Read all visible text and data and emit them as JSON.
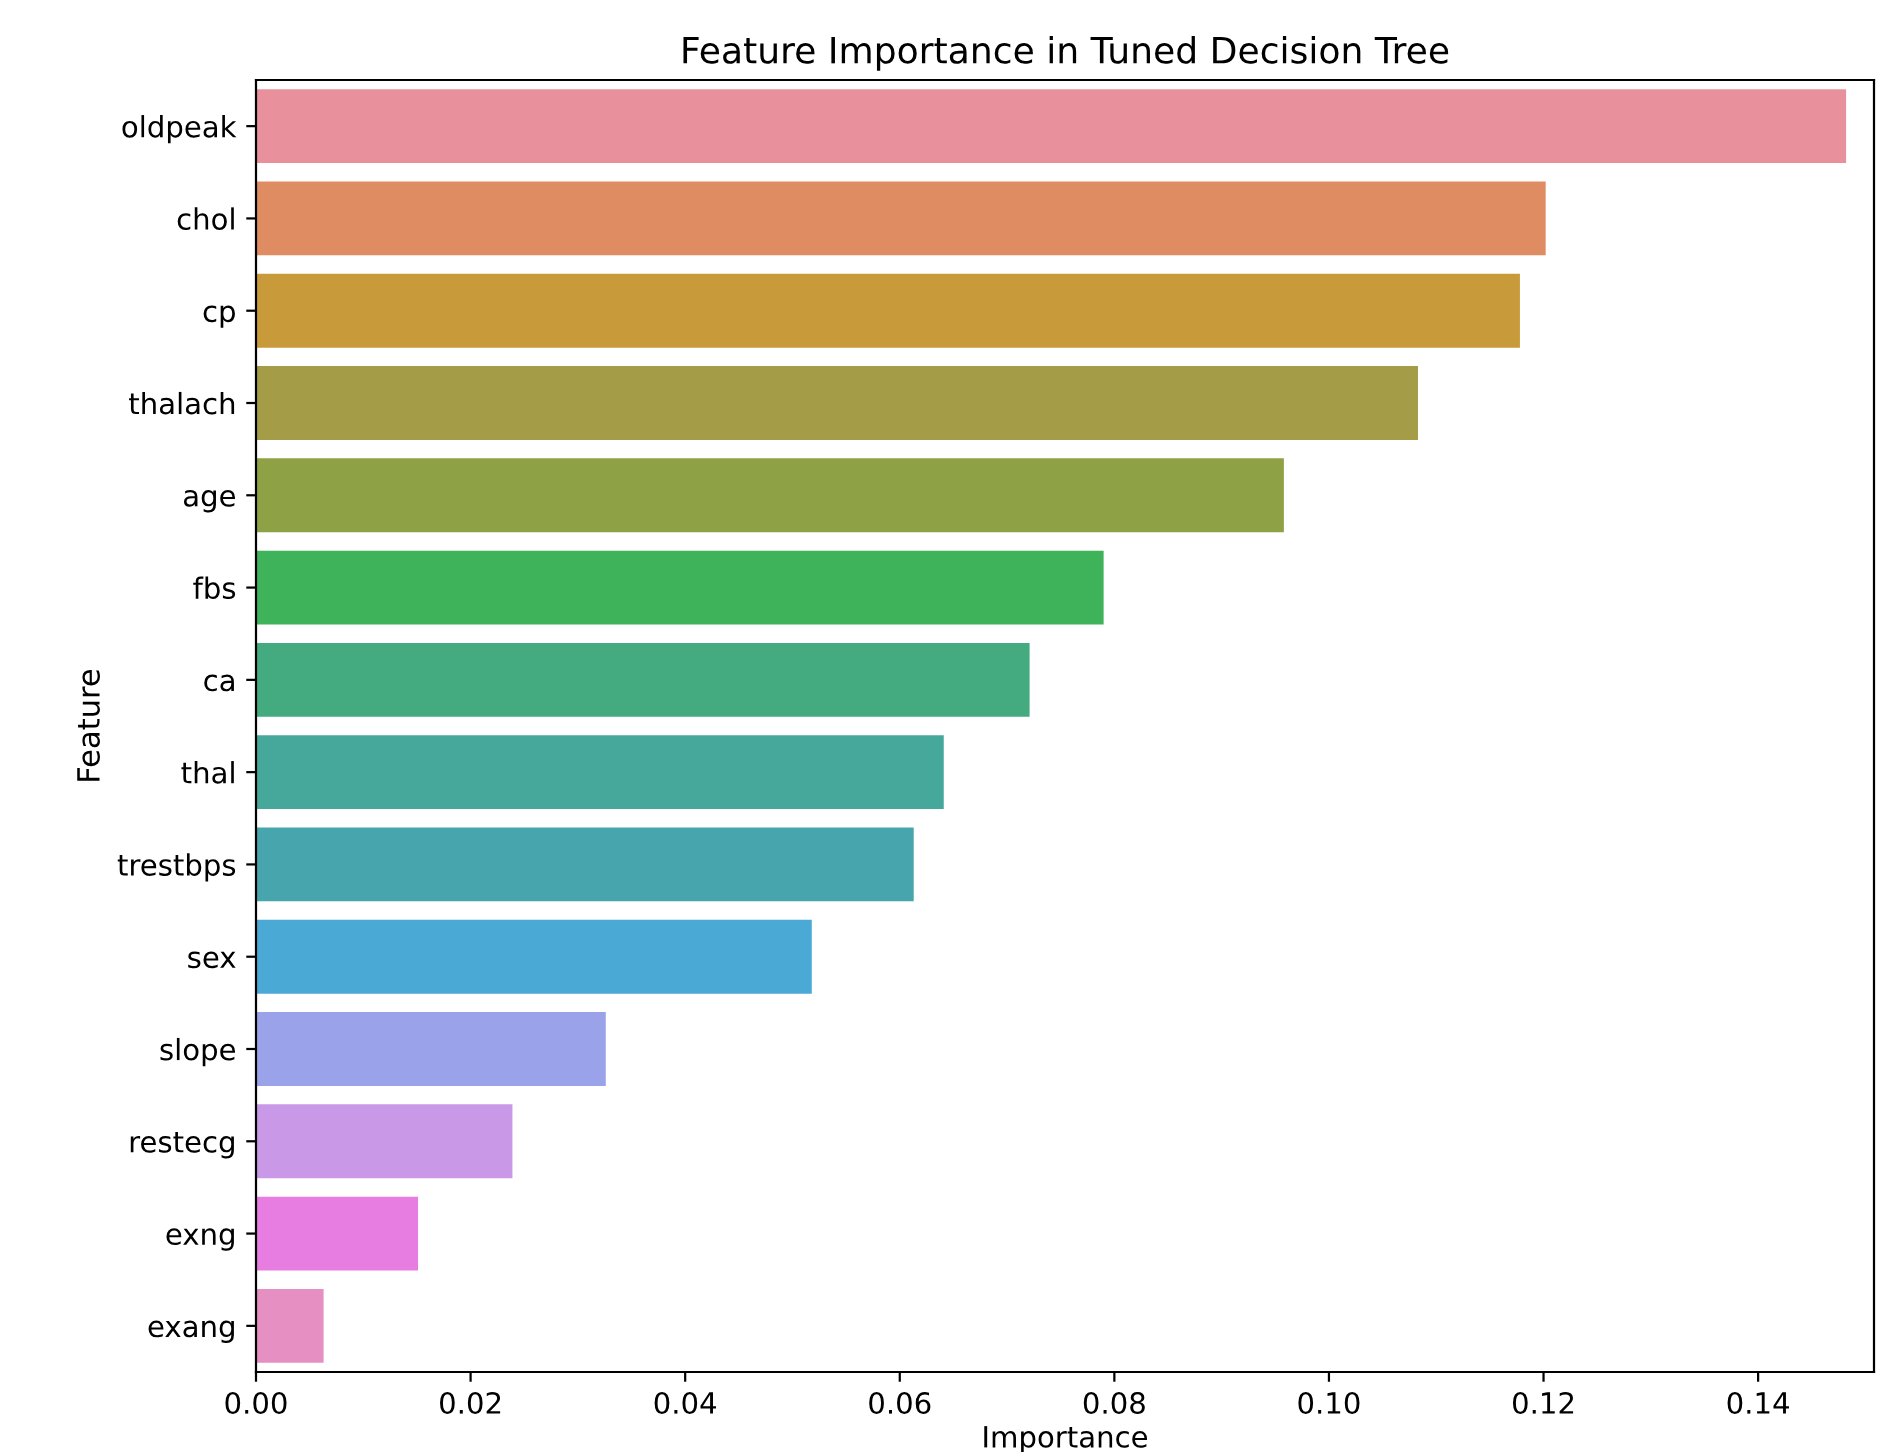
{
  "chart_data": {
    "type": "bar",
    "orientation": "horizontal",
    "title": "Feature Importance in Tuned Decision Tree",
    "xlabel": "Importance",
    "ylabel": "Feature",
    "categories": [
      "oldpeak",
      "chol",
      "cp",
      "thalach",
      "age",
      "fbs",
      "ca",
      "thal",
      "trestbps",
      "sex",
      "slope",
      "restecg",
      "exng",
      "exang"
    ],
    "values": [
      0.1482,
      0.1202,
      0.1178,
      0.1083,
      0.0958,
      0.079,
      0.0721,
      0.0641,
      0.0613,
      0.0518,
      0.0326,
      0.0239,
      0.0151,
      0.0063
    ],
    "colors": [
      "#e8909b",
      "#df8c62",
      "#c99a3a",
      "#a59c47",
      "#8fa145",
      "#3fb35a",
      "#44ab80",
      "#46a89a",
      "#47a5ad",
      "#4ba9d6",
      "#9aa3ea",
      "#c999e8",
      "#e77de0",
      "#e58fc2"
    ],
    "xlim": [
      0,
      0.1508
    ],
    "xticks": [
      {
        "value": 0,
        "label": "0.00"
      },
      {
        "value": 0.02,
        "label": "0.02"
      },
      {
        "value": 0.04,
        "label": "0.04"
      },
      {
        "value": 0.06,
        "label": "0.06"
      },
      {
        "value": 0.08,
        "label": "0.08"
      },
      {
        "value": 0.1,
        "label": "0.10"
      },
      {
        "value": 0.12,
        "label": "0.12"
      },
      {
        "value": 0.14,
        "label": "0.14"
      }
    ],
    "grid": false
  }
}
